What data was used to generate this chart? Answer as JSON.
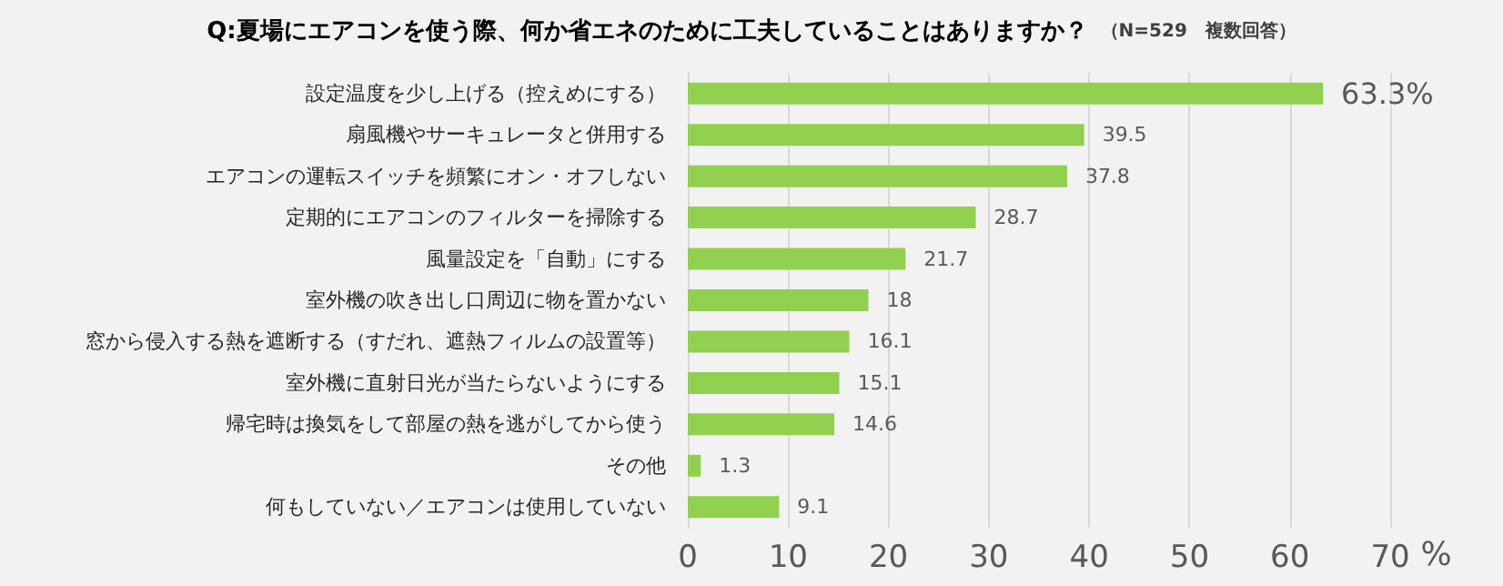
{
  "chart_data": {
    "type": "bar",
    "orientation": "horizontal",
    "title": "Q:夏場にエアコンを使う際、何か省エネのために工夫していることはありますか？",
    "subtitle": "（N=529　複数回答）",
    "xlabel": "%",
    "categories": [
      "設定温度を少し上げる（控えめにする）",
      "扇風機やサーキュレータと併用する",
      "エアコンの運転スイッチを頻繁にオン・オフしない",
      "定期的にエアコンのフィルターを掃除する",
      "風量設定を「自動」にする",
      "室外機の吹き出し口周辺に物を置かない",
      "窓から侵入する熱を遮断する（すだれ、遮熱フィルムの設置等）",
      "室外機に直射日光が当たらないようにする",
      "帰宅時は換気をして部屋の熱を逃がしてから使う",
      "その他",
      "何もしていない／エアコンは使用していない"
    ],
    "values": [
      63.3,
      39.5,
      37.8,
      28.7,
      21.7,
      18,
      16.1,
      15.1,
      14.6,
      1.3,
      9.1
    ],
    "value_labels": [
      "63.3%",
      "39.5",
      "37.8",
      "28.7",
      "21.7",
      "18",
      "16.1",
      "15.1",
      "14.6",
      "1.3",
      "9.1"
    ],
    "color": "#92d050",
    "xlim": [
      0,
      70
    ],
    "xticks": [
      0,
      10,
      20,
      30,
      40,
      50,
      60,
      70
    ],
    "grid": "x"
  }
}
